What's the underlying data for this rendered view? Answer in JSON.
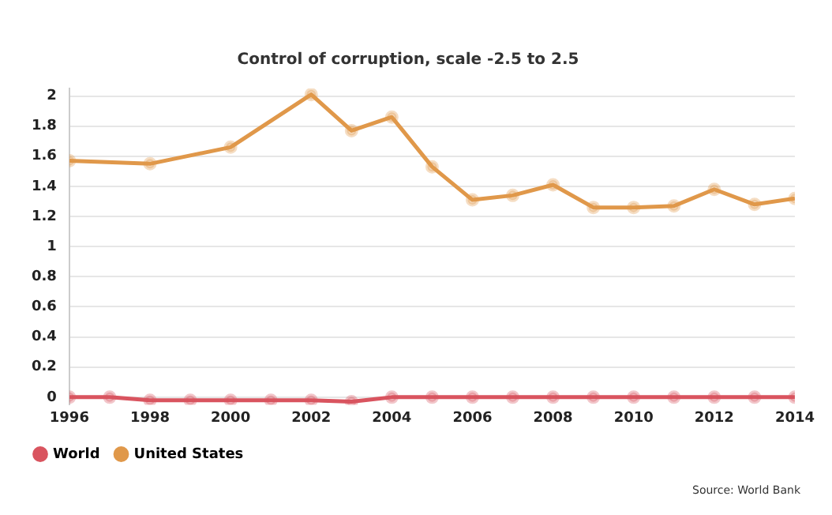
{
  "chart_data": {
    "type": "line",
    "title": "Control of corruption, scale -2.5 to 2.5",
    "xlim": [
      1996,
      2014
    ],
    "xticks": [
      1996,
      1998,
      2000,
      2002,
      2004,
      2006,
      2008,
      2010,
      2012,
      2014
    ],
    "ylim": [
      -0.05,
      2.05
    ],
    "yticks": [
      0,
      0.2,
      0.4,
      0.6,
      0.8,
      1,
      1.2,
      1.4,
      1.6,
      1.8,
      2
    ],
    "series": [
      {
        "name": "World",
        "color": "#d9545f",
        "x": [
          1996,
          1997,
          1998,
          1999,
          2000,
          2001,
          2002,
          2003,
          2004,
          2005,
          2006,
          2007,
          2008,
          2009,
          2010,
          2011,
          2012,
          2013,
          2014
        ],
        "values": [
          0,
          0,
          -0.02,
          -0.02,
          -0.02,
          -0.02,
          -0.02,
          -0.03,
          0,
          0,
          0,
          0,
          0,
          0,
          0,
          0,
          0,
          0,
          0
        ]
      },
      {
        "name": "United States",
        "color": "#e0984a",
        "x": [
          1996,
          1998,
          2000,
          2002,
          2003,
          2004,
          2005,
          2006,
          2007,
          2008,
          2009,
          2010,
          2011,
          2012,
          2013,
          2014
        ],
        "values": [
          1.57,
          1.55,
          1.66,
          2.01,
          1.77,
          1.86,
          1.53,
          1.31,
          1.34,
          1.41,
          1.26,
          1.26,
          1.27,
          1.38,
          1.28,
          1.32
        ]
      }
    ],
    "grid": "y",
    "legend": "bottom left",
    "marker": "circle",
    "line_style": "solid",
    "annotations": [
      "Source: World Bank"
    ]
  }
}
